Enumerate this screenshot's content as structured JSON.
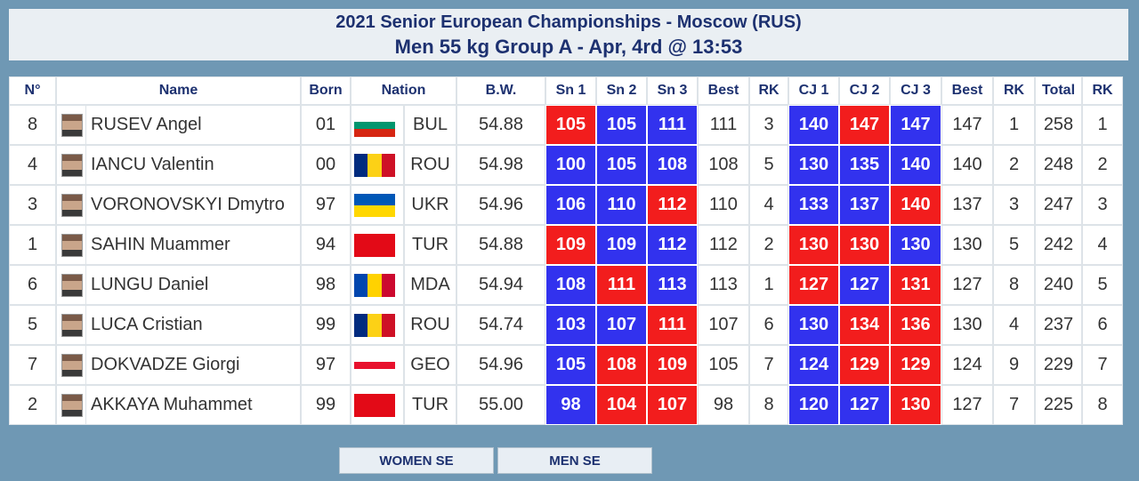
{
  "header": {
    "title": "2021 Senior European Championships - Moscow (RUS)",
    "subtitle": "Men 55 kg Group A - Apr, 4rd @ 13:53"
  },
  "table": {
    "columns": [
      "N°",
      "Name",
      "Born",
      "Nation",
      "B.W.",
      "Sn 1",
      "Sn 2",
      "Sn 3",
      "Best",
      "RK",
      "CJ 1",
      "CJ 2",
      "CJ 3",
      "Best",
      "RK",
      "Total",
      "RK"
    ],
    "good_color": "#3232ee",
    "fail_color": "#f21d1d",
    "rows": [
      {
        "cells": [
          "8",
          "RUSEV Angel",
          "01",
          "BUL",
          "54.88",
          "105",
          "105",
          "111",
          "111",
          "3",
          "140",
          "147",
          "147",
          "147",
          "1",
          "258",
          "1"
        ],
        "good": [
          false,
          true,
          true,
          true,
          false,
          true
        ],
        "flag": [
          "#ffffff",
          "#00966e",
          "#d62612"
        ],
        "flag_vertical": false
      },
      {
        "cells": [
          "4",
          "IANCU Valentin",
          "00",
          "ROU",
          "54.98",
          "100",
          "105",
          "108",
          "108",
          "5",
          "130",
          "135",
          "140",
          "140",
          "2",
          "248",
          "2"
        ],
        "good": [
          true,
          true,
          true,
          true,
          true,
          true
        ],
        "flag": [
          "#002b7f",
          "#fcd116",
          "#ce1126"
        ],
        "flag_vertical": true
      },
      {
        "cells": [
          "3",
          "VORONOVSKYI Dmytro",
          "97",
          "UKR",
          "54.96",
          "106",
          "110",
          "112",
          "110",
          "4",
          "133",
          "137",
          "140",
          "137",
          "3",
          "247",
          "3"
        ],
        "good": [
          true,
          true,
          false,
          true,
          true,
          false
        ],
        "flag": [
          "#0057b7",
          "#ffd700"
        ],
        "flag_vertical": false
      },
      {
        "cells": [
          "1",
          "SAHIN Muammer",
          "94",
          "TUR",
          "54.88",
          "109",
          "109",
          "112",
          "112",
          "2",
          "130",
          "130",
          "130",
          "130",
          "5",
          "242",
          "4"
        ],
        "good": [
          false,
          true,
          true,
          false,
          false,
          true
        ],
        "flag": [
          "#e30a17"
        ],
        "flag_vertical": false
      },
      {
        "cells": [
          "6",
          "LUNGU Daniel",
          "98",
          "MDA",
          "54.94",
          "108",
          "111",
          "113",
          "113",
          "1",
          "127",
          "127",
          "131",
          "127",
          "8",
          "240",
          "5"
        ],
        "good": [
          true,
          false,
          true,
          false,
          true,
          false
        ],
        "flag": [
          "#0046ae",
          "#ffd200",
          "#cc092f"
        ],
        "flag_vertical": true
      },
      {
        "cells": [
          "5",
          "LUCA Cristian",
          "99",
          "ROU",
          "54.74",
          "103",
          "107",
          "111",
          "107",
          "6",
          "130",
          "134",
          "136",
          "130",
          "4",
          "237",
          "6"
        ],
        "good": [
          true,
          true,
          false,
          true,
          false,
          false
        ],
        "flag": [
          "#002b7f",
          "#fcd116",
          "#ce1126"
        ],
        "flag_vertical": true
      },
      {
        "cells": [
          "7",
          "DOKVADZE Giorgi",
          "97",
          "GEO",
          "54.96",
          "105",
          "108",
          "109",
          "105",
          "7",
          "124",
          "129",
          "129",
          "124",
          "9",
          "229",
          "7"
        ],
        "good": [
          true,
          false,
          false,
          true,
          false,
          false
        ],
        "flag": [
          "#ffffff",
          "#e8112d",
          "#ffffff"
        ],
        "flag_vertical": false
      },
      {
        "cells": [
          "2",
          "AKKAYA Muhammet",
          "99",
          "TUR",
          "55.00",
          "98",
          "104",
          "107",
          "98",
          "8",
          "120",
          "127",
          "130",
          "127",
          "7",
          "225",
          "8"
        ],
        "good": [
          true,
          false,
          false,
          true,
          true,
          false
        ],
        "flag": [
          "#e30a17"
        ],
        "flag_vertical": false
      }
    ]
  },
  "nav": [
    "WOMEN SE",
    "MEN SE"
  ]
}
